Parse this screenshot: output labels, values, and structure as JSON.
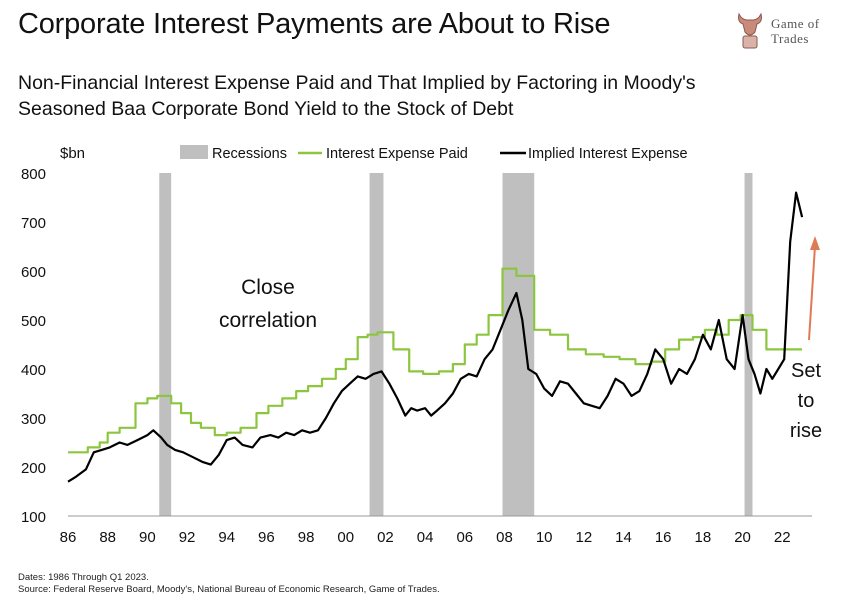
{
  "header": {
    "title": "Corporate Interest Payments are About to Rise",
    "subtitle": "Non-Financial Interest Expense Paid and That Implied by Factoring in Moody's Seasoned Baa Corporate Bond Yield to the Stock of Debt"
  },
  "logo": {
    "line1": "Game of",
    "line2": "Trades",
    "icon": "bull-icon"
  },
  "footnote": {
    "line1": "Dates: 1986 Through Q1 2023.",
    "line2": "Source: Federal Reserve Board, Moody's, National Bureau of Economic Research, Game of Trades."
  },
  "colors": {
    "paid": "#8cc63f",
    "implied": "#000000",
    "recession": "#bfbfbf",
    "arrow": "#e07a55"
  },
  "chart_data": {
    "type": "line",
    "ylabel": "$bn",
    "ylim": [
      100,
      800
    ],
    "xlim": [
      1986,
      2023.5
    ],
    "yticks": [
      100,
      200,
      300,
      400,
      500,
      600,
      700,
      800
    ],
    "xticks": [
      {
        "x": 1986,
        "label": "86"
      },
      {
        "x": 1988,
        "label": "88"
      },
      {
        "x": 1990,
        "label": "90"
      },
      {
        "x": 1992,
        "label": "92"
      },
      {
        "x": 1994,
        "label": "94"
      },
      {
        "x": 1996,
        "label": "96"
      },
      {
        "x": 1998,
        "label": "98"
      },
      {
        "x": 2000,
        "label": "00"
      },
      {
        "x": 2002,
        "label": "02"
      },
      {
        "x": 2004,
        "label": "04"
      },
      {
        "x": 2006,
        "label": "06"
      },
      {
        "x": 2008,
        "label": "08"
      },
      {
        "x": 2010,
        "label": "10"
      },
      {
        "x": 2012,
        "label": "12"
      },
      {
        "x": 2014,
        "label": "14"
      },
      {
        "x": 2016,
        "label": "16"
      },
      {
        "x": 2018,
        "label": "18"
      },
      {
        "x": 2020,
        "label": "20"
      },
      {
        "x": 2022,
        "label": "22"
      }
    ],
    "legend": {
      "placement": "top",
      "items": [
        "Recessions",
        "Interest Expense Paid",
        "Implied Interest Expense"
      ]
    },
    "recessions": [
      [
        1990.6,
        1991.2
      ],
      [
        2001.2,
        2001.9
      ],
      [
        2007.9,
        2009.5
      ],
      [
        2020.1,
        2020.5
      ]
    ],
    "series": [
      {
        "name": "Interest Expense Paid",
        "step": true,
        "x": [
          1986,
          1987,
          1987.6,
          1988,
          1988.6,
          1989.4,
          1990,
          1990.5,
          1991.2,
          1991.7,
          1992.2,
          1992.7,
          1993.4,
          1994,
          1994.7,
          1995.5,
          1996.1,
          1996.8,
          1997.5,
          1998.1,
          1998.8,
          1999.5,
          2000,
          2000.6,
          2001.1,
          2001.6,
          2002.4,
          2003.2,
          2003.9,
          2004.7,
          2005.4,
          2006,
          2006.6,
          2007.2,
          2007.9,
          2008.6,
          2009.5,
          2010.3,
          2011.2,
          2012.1,
          2013,
          2013.8,
          2014.6,
          2015.4,
          2016.1,
          2016.8,
          2017.5,
          2018.1,
          2018.7,
          2019.3,
          2019.9,
          2020.5,
          2021.2,
          2021.8,
          2022.5,
          2023
        ],
        "values": [
          230,
          240,
          250,
          270,
          280,
          330,
          340,
          345,
          330,
          310,
          290,
          280,
          265,
          270,
          280,
          310,
          325,
          340,
          355,
          365,
          380,
          400,
          420,
          465,
          470,
          475,
          440,
          395,
          390,
          395,
          410,
          450,
          470,
          510,
          605,
          590,
          480,
          470,
          440,
          430,
          425,
          420,
          410,
          415,
          440,
          460,
          465,
          480,
          470,
          500,
          510,
          480,
          440,
          440,
          440,
          440
        ]
      },
      {
        "name": "Implied Interest Expense",
        "step": false,
        "x": [
          1986,
          1986.4,
          1986.9,
          1987.3,
          1987.7,
          1988.1,
          1988.6,
          1989,
          1989.5,
          1990,
          1990.3,
          1990.7,
          1991,
          1991.4,
          1991.8,
          1992.3,
          1992.8,
          1993.2,
          1993.6,
          1994,
          1994.4,
          1994.8,
          1995.3,
          1995.7,
          1996.2,
          1996.6,
          1997,
          1997.4,
          1997.8,
          1998.2,
          1998.6,
          1999,
          1999.4,
          1999.8,
          2000.2,
          2000.6,
          2001,
          2001.4,
          2001.8,
          2002.2,
          2002.6,
          2003,
          2003.3,
          2003.6,
          2004,
          2004.3,
          2004.6,
          2005,
          2005.4,
          2005.8,
          2006.2,
          2006.6,
          2007,
          2007.4,
          2007.8,
          2008.2,
          2008.6,
          2008.9,
          2009.2,
          2009.6,
          2010,
          2010.4,
          2010.8,
          2011.2,
          2011.6,
          2012,
          2012.4,
          2012.8,
          2013.2,
          2013.6,
          2014,
          2014.4,
          2014.8,
          2015.2,
          2015.6,
          2016,
          2016.4,
          2016.8,
          2017.2,
          2017.6,
          2018,
          2018.4,
          2018.8,
          2019.2,
          2019.6,
          2020,
          2020.3,
          2020.6,
          2020.9,
          2021.2,
          2021.5,
          2021.8,
          2022.1,
          2022.4,
          2022.7,
          2023
        ],
        "values": [
          170,
          180,
          195,
          230,
          235,
          240,
          250,
          245,
          255,
          265,
          275,
          260,
          245,
          235,
          230,
          220,
          210,
          205,
          225,
          255,
          260,
          245,
          240,
          260,
          265,
          260,
          270,
          265,
          275,
          270,
          275,
          300,
          330,
          355,
          370,
          385,
          380,
          390,
          395,
          370,
          340,
          305,
          320,
          315,
          320,
          305,
          315,
          330,
          350,
          380,
          390,
          385,
          420,
          440,
          480,
          520,
          555,
          500,
          400,
          390,
          360,
          345,
          375,
          370,
          350,
          330,
          325,
          320,
          345,
          380,
          370,
          345,
          355,
          390,
          440,
          420,
          370,
          400,
          390,
          420,
          470,
          440,
          500,
          420,
          400,
          510,
          420,
          390,
          350,
          400,
          380,
          400,
          420,
          660,
          760,
          710
        ]
      }
    ],
    "annotations": [
      {
        "text": "Close correlation"
      },
      {
        "text": "Set to rise"
      }
    ]
  }
}
